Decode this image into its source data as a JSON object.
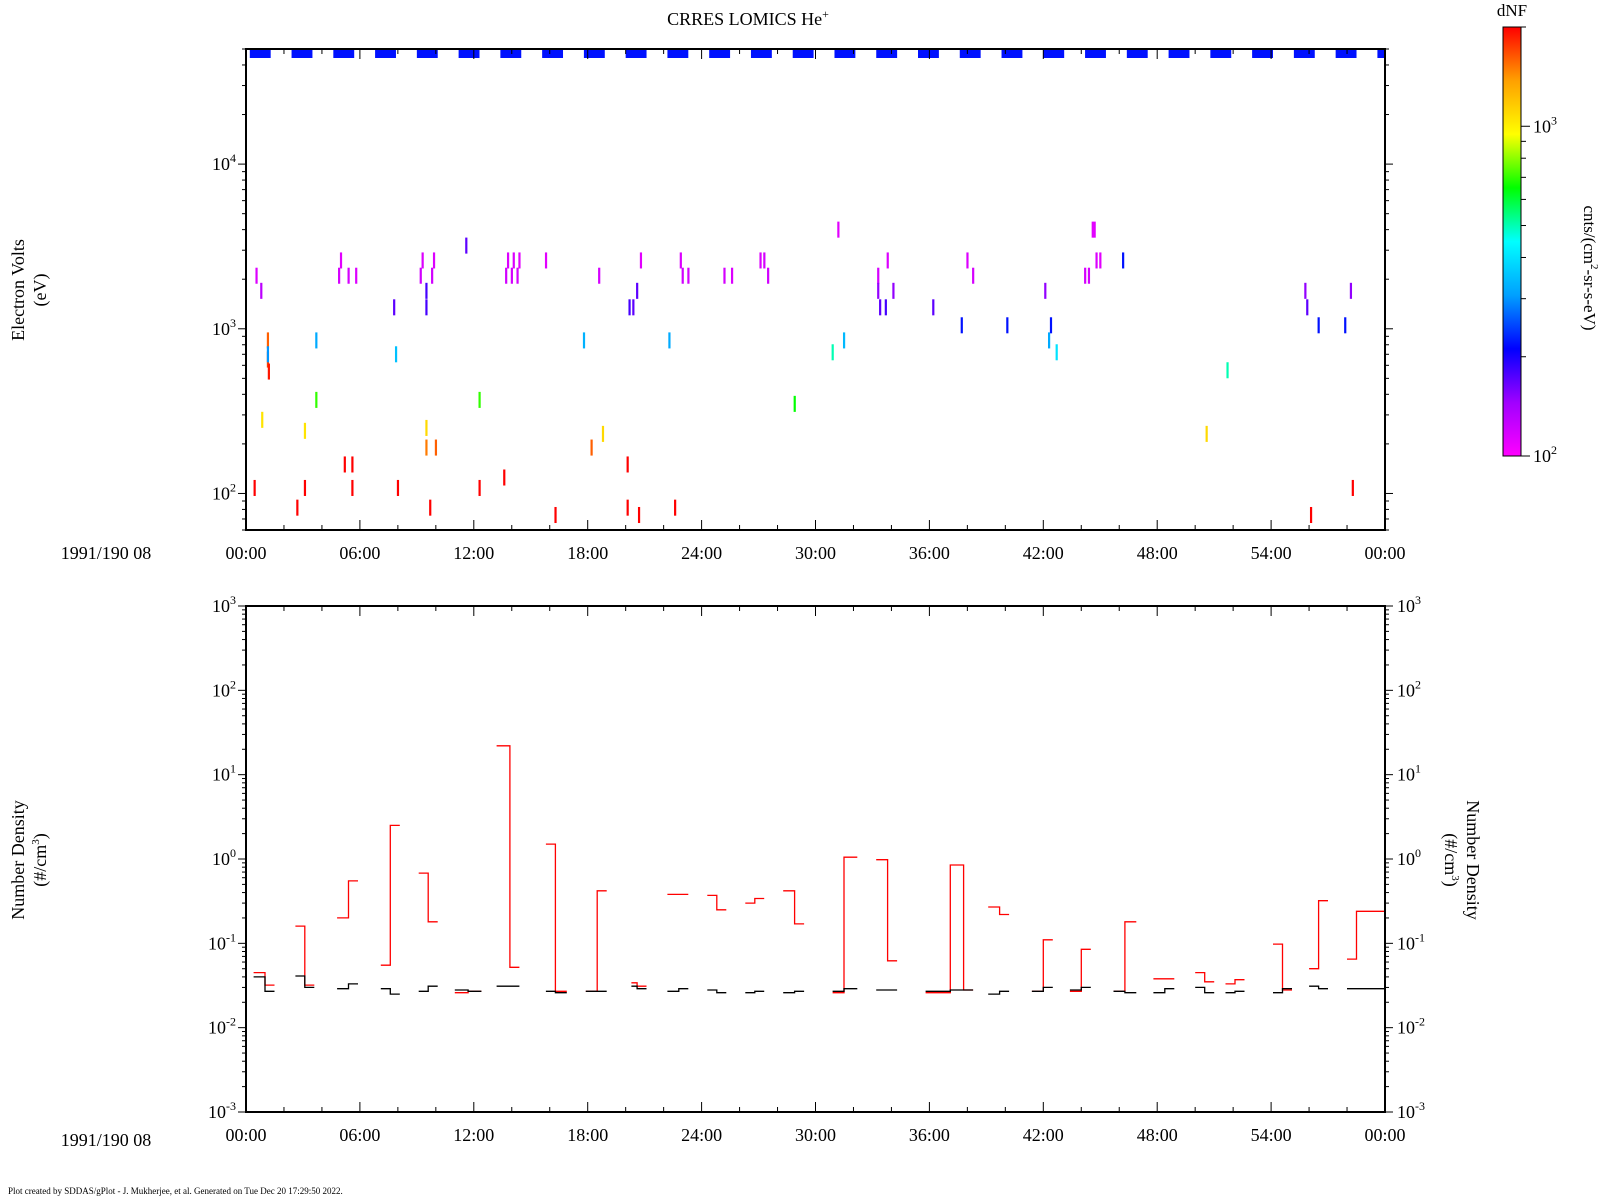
{
  "title_base": "CRRES LOMICS He",
  "title_sup": "+",
  "footer": "Plot created by SDDAS/gPlot - J. Mukherjee, et al.  Generated on Tue Dec 20 17:29:50 2022.",
  "date_label": "1991/190 08",
  "colorbar": {
    "title": "dNF",
    "label_main": "cnts/(cm",
    "label_sup": "2",
    "label_tail": "-sr-s-eV)",
    "range": [
      100,
      2000
    ],
    "ticks": [
      {
        "base": "10",
        "exp": "2",
        "value": 100
      },
      {
        "base": "10",
        "exp": "3",
        "value": 1000
      }
    ],
    "colors": [
      "#ff00ff",
      "#a000ff",
      "#0000ff",
      "#00a0ff",
      "#00ffff",
      "#00ff00",
      "#ffff00",
      "#ffa000",
      "#ff0000"
    ]
  },
  "chart_data": [
    {
      "type": "heatmap",
      "ylabel_main": "Electron Volts",
      "ylabel_unit": "(eV)",
      "xlim_minutes": [
        0,
        60
      ],
      "ylim": [
        60,
        50000
      ],
      "y_scale": "log",
      "x_ticks": [
        "00:00",
        "06:00",
        "12:00",
        "18:00",
        "24:00",
        "30:00",
        "36:00",
        "42:00",
        "48:00",
        "54:00",
        "00:00"
      ],
      "y_ticks": [
        {
          "base": "10",
          "exp": "2",
          "value": 100
        },
        {
          "base": "10",
          "exp": "3",
          "value": 1000
        },
        {
          "base": "10",
          "exp": "4",
          "value": 10000
        }
      ],
      "top_band_dNF": 220,
      "points": [
        [
          0.55,
          2100,
          115
        ],
        [
          0.8,
          1700,
          130
        ],
        [
          0.85,
          280,
          1050
        ],
        [
          1.15,
          850,
          1600
        ],
        [
          1.15,
          650,
          1700
        ],
        [
          1.2,
          550,
          1900
        ],
        [
          1.15,
          700,
          300
        ],
        [
          0.45,
          108,
          2000
        ],
        [
          2.7,
          82,
          2000
        ],
        [
          3.1,
          108,
          2000
        ],
        [
          3.1,
          240,
          1050
        ],
        [
          3.7,
          850,
          320
        ],
        [
          3.7,
          370,
          700
        ],
        [
          4.9,
          2100,
          118
        ],
        [
          5.0,
          2600,
          112
        ],
        [
          5.4,
          2100,
          118
        ],
        [
          5.8,
          2100,
          115
        ],
        [
          5.2,
          150,
          2000
        ],
        [
          5.6,
          150,
          2000
        ],
        [
          5.6,
          108,
          2000
        ],
        [
          7.8,
          1350,
          170
        ],
        [
          7.9,
          700,
          350
        ],
        [
          8.0,
          108,
          2000
        ],
        [
          9.7,
          82,
          2000
        ],
        [
          9.2,
          2100,
          120
        ],
        [
          9.3,
          2600,
          115
        ],
        [
          9.5,
          1350,
          180
        ],
        [
          9.5,
          1700,
          180
        ],
        [
          9.5,
          250,
          1100
        ],
        [
          9.5,
          190,
          1500
        ],
        [
          9.8,
          2100,
          120
        ],
        [
          9.9,
          2600,
          115
        ],
        [
          10.0,
          190,
          1600
        ],
        [
          11.6,
          3200,
          170
        ],
        [
          12.3,
          370,
          700
        ],
        [
          12.3,
          108,
          2000
        ],
        [
          13.6,
          125,
          2000
        ],
        [
          13.7,
          2100,
          120
        ],
        [
          13.8,
          2600,
          115
        ],
        [
          14.0,
          2100,
          118
        ],
        [
          14.1,
          2600,
          115
        ],
        [
          14.4,
          2600,
          112
        ],
        [
          14.3,
          2100,
          118
        ],
        [
          15.8,
          2600,
          112
        ],
        [
          16.3,
          74,
          2000
        ],
        [
          17.8,
          850,
          330
        ],
        [
          18.2,
          190,
          1600
        ],
        [
          18.6,
          2100,
          118
        ],
        [
          18.8,
          230,
          1100
        ],
        [
          20.2,
          1350,
          180
        ],
        [
          20.4,
          1350,
          170
        ],
        [
          20.6,
          1700,
          170
        ],
        [
          20.8,
          2600,
          112
        ],
        [
          20.1,
          150,
          2000
        ],
        [
          20.1,
          82,
          2000
        ],
        [
          20.7,
          74,
          2000
        ],
        [
          22.3,
          850,
          320
        ],
        [
          22.6,
          82,
          2000
        ],
        [
          22.9,
          2600,
          115
        ],
        [
          23.0,
          2100,
          120
        ],
        [
          23.3,
          2100,
          118
        ],
        [
          25.2,
          2100,
          118
        ],
        [
          25.6,
          2100,
          115
        ],
        [
          27.1,
          2600,
          115
        ],
        [
          27.3,
          2600,
          118
        ],
        [
          27.5,
          2100,
          120
        ],
        [
          28.9,
          350,
          650
        ],
        [
          30.9,
          720,
          500
        ],
        [
          31.2,
          4000,
          112
        ],
        [
          31.5,
          850,
          340
        ],
        [
          33.3,
          2100,
          118
        ],
        [
          33.3,
          1700,
          150
        ],
        [
          33.4,
          1350,
          170
        ],
        [
          33.7,
          1350,
          180
        ],
        [
          33.8,
          2600,
          115
        ],
        [
          34.1,
          1700,
          150
        ],
        [
          36.2,
          1350,
          170
        ],
        [
          37.7,
          1050,
          220
        ],
        [
          38.0,
          2600,
          115
        ],
        [
          38.3,
          2100,
          118
        ],
        [
          40.1,
          1050,
          220
        ],
        [
          42.1,
          1700,
          150
        ],
        [
          42.3,
          850,
          320
        ],
        [
          42.4,
          1050,
          220
        ],
        [
          42.7,
          720,
          400
        ],
        [
          44.2,
          2100,
          118
        ],
        [
          44.4,
          2100,
          118
        ],
        [
          44.6,
          4000,
          112
        ],
        [
          44.7,
          4000,
          112
        ],
        [
          44.8,
          2600,
          115
        ],
        [
          45.0,
          2600,
          112
        ],
        [
          46.2,
          2600,
          220
        ],
        [
          50.6,
          230,
          1100
        ],
        [
          51.7,
          560,
          500
        ],
        [
          55.8,
          1700,
          150
        ],
        [
          55.9,
          1350,
          170
        ],
        [
          56.1,
          74,
          2000
        ],
        [
          56.5,
          1050,
          220
        ],
        [
          57.9,
          1050,
          220
        ],
        [
          58.2,
          1700,
          150
        ],
        [
          58.3,
          108,
          2000
        ]
      ]
    },
    {
      "type": "line",
      "ylabel_main": "Number Density",
      "ylabel_unit_pre": "(#/cm",
      "ylabel_unit_sup": "3",
      "ylabel_unit_post": ")",
      "xlim_minutes": [
        0,
        60
      ],
      "ylim": [
        0.001,
        1000
      ],
      "y_scale": "log",
      "x_ticks": [
        "00:00",
        "06:00",
        "12:00",
        "18:00",
        "24:00",
        "30:00",
        "36:00",
        "42:00",
        "48:00",
        "54:00",
        "00:00"
      ],
      "y_ticks": [
        {
          "base": "10",
          "exp": "3",
          "value": 1000
        },
        {
          "base": "10",
          "exp": "2",
          "value": 100
        },
        {
          "base": "10",
          "exp": "1",
          "value": 10
        },
        {
          "base": "10",
          "exp": "0",
          "value": 1
        },
        {
          "base": "10",
          "exp": "-1",
          "value": 0.1
        },
        {
          "base": "10",
          "exp": "-2",
          "value": 0.01
        },
        {
          "base": "10",
          "exp": "-3",
          "value": 0.001
        }
      ],
      "series": [
        {
          "color": "#ff0000",
          "segments": [
            [
              0.4,
              1.0,
              0.045
            ],
            [
              1.0,
              1.5,
              0.032
            ],
            [
              2.6,
              3.1,
              0.16
            ],
            [
              3.1,
              3.6,
              0.032
            ],
            [
              4.8,
              5.4,
              0.2
            ],
            [
              5.4,
              5.9,
              0.55
            ],
            [
              7.1,
              7.6,
              0.055
            ],
            [
              7.6,
              8.1,
              2.5
            ],
            [
              9.1,
              9.6,
              0.68
            ],
            [
              9.6,
              10.1,
              0.18
            ],
            [
              11.0,
              11.7,
              0.026
            ],
            [
              11.7,
              12.4,
              0.027
            ],
            [
              13.2,
              13.9,
              22
            ],
            [
              13.9,
              14.4,
              0.052
            ],
            [
              15.8,
              16.3,
              1.5
            ],
            [
              16.3,
              16.9,
              0.027
            ],
            [
              17.9,
              18.5,
              0.027
            ],
            [
              18.5,
              19.0,
              0.42
            ],
            [
              20.3,
              20.6,
              0.034
            ],
            [
              20.6,
              21.1,
              0.031
            ],
            [
              22.2,
              23.3,
              0.38
            ],
            [
              24.3,
              24.8,
              0.37
            ],
            [
              24.8,
              25.3,
              0.25
            ],
            [
              26.3,
              26.8,
              0.3
            ],
            [
              26.8,
              27.3,
              0.34
            ],
            [
              28.3,
              28.9,
              0.42
            ],
            [
              28.9,
              29.4,
              0.17
            ],
            [
              30.9,
              31.5,
              0.026
            ],
            [
              31.5,
              32.2,
              1.05
            ],
            [
              33.2,
              33.8,
              0.98
            ],
            [
              33.8,
              34.3,
              0.062
            ],
            [
              35.8,
              37.1,
              0.026
            ],
            [
              37.1,
              37.8,
              0.85
            ],
            [
              37.8,
              38.3,
              0.028
            ],
            [
              39.1,
              39.7,
              0.27
            ],
            [
              39.7,
              40.2,
              0.22
            ],
            [
              41.4,
              42.0,
              0.027
            ],
            [
              42.0,
              42.5,
              0.11
            ],
            [
              43.4,
              44.0,
              0.027
            ],
            [
              44.0,
              44.5,
              0.085
            ],
            [
              45.7,
              46.3,
              0.027
            ],
            [
              46.3,
              46.9,
              0.18
            ],
            [
              47.8,
              48.9,
              0.038
            ],
            [
              50.0,
              50.5,
              0.045
            ],
            [
              50.5,
              51.0,
              0.035
            ],
            [
              51.6,
              52.1,
              0.033
            ],
            [
              52.1,
              52.6,
              0.037
            ],
            [
              54.1,
              54.6,
              0.098
            ],
            [
              54.6,
              55.1,
              0.028
            ],
            [
              56.0,
              56.5,
              0.05
            ],
            [
              56.5,
              57.0,
              0.32
            ],
            [
              58.0,
              58.5,
              0.065
            ],
            [
              58.5,
              60.0,
              0.24
            ]
          ]
        },
        {
          "color": "#000000",
          "segments": [
            [
              0.4,
              1.0,
              0.04
            ],
            [
              1.0,
              1.5,
              0.027
            ],
            [
              2.6,
              3.1,
              0.041
            ],
            [
              3.1,
              3.6,
              0.03
            ],
            [
              4.8,
              5.4,
              0.029
            ],
            [
              5.4,
              5.9,
              0.033
            ],
            [
              7.1,
              7.6,
              0.029
            ],
            [
              7.6,
              8.1,
              0.025
            ],
            [
              9.1,
              9.6,
              0.027
            ],
            [
              9.6,
              10.1,
              0.031
            ],
            [
              11.0,
              11.7,
              0.028
            ],
            [
              11.7,
              12.4,
              0.027
            ],
            [
              13.2,
              14.4,
              0.031
            ],
            [
              15.8,
              16.3,
              0.027
            ],
            [
              16.3,
              16.9,
              0.026
            ],
            [
              17.9,
              19.0,
              0.027
            ],
            [
              20.3,
              20.6,
              0.031
            ],
            [
              20.6,
              21.1,
              0.029
            ],
            [
              22.2,
              22.8,
              0.027
            ],
            [
              22.8,
              23.3,
              0.029
            ],
            [
              24.3,
              24.8,
              0.028
            ],
            [
              24.8,
              25.3,
              0.026
            ],
            [
              26.3,
              26.8,
              0.026
            ],
            [
              26.8,
              27.3,
              0.027
            ],
            [
              28.3,
              28.9,
              0.026
            ],
            [
              28.9,
              29.4,
              0.027
            ],
            [
              30.9,
              31.5,
              0.027
            ],
            [
              31.5,
              32.2,
              0.029
            ],
            [
              33.2,
              34.3,
              0.028
            ],
            [
              35.8,
              37.1,
              0.027
            ],
            [
              37.1,
              37.8,
              0.028
            ],
            [
              37.8,
              38.3,
              0.028
            ],
            [
              39.1,
              39.7,
              0.025
            ],
            [
              39.7,
              40.2,
              0.027
            ],
            [
              41.4,
              42.0,
              0.027
            ],
            [
              42.0,
              42.5,
              0.03
            ],
            [
              43.4,
              44.0,
              0.028
            ],
            [
              44.0,
              44.5,
              0.03
            ],
            [
              45.7,
              46.3,
              0.027
            ],
            [
              46.3,
              46.9,
              0.026
            ],
            [
              47.8,
              48.4,
              0.026
            ],
            [
              48.4,
              48.9,
              0.029
            ],
            [
              50.0,
              50.5,
              0.03
            ],
            [
              50.5,
              51.0,
              0.026
            ],
            [
              51.6,
              52.1,
              0.026
            ],
            [
              52.1,
              52.6,
              0.027
            ],
            [
              54.1,
              54.6,
              0.026
            ],
            [
              54.6,
              55.1,
              0.029
            ],
            [
              56.0,
              56.5,
              0.031
            ],
            [
              56.5,
              57.0,
              0.029
            ],
            [
              58.0,
              60.0,
              0.029
            ]
          ]
        }
      ]
    }
  ]
}
